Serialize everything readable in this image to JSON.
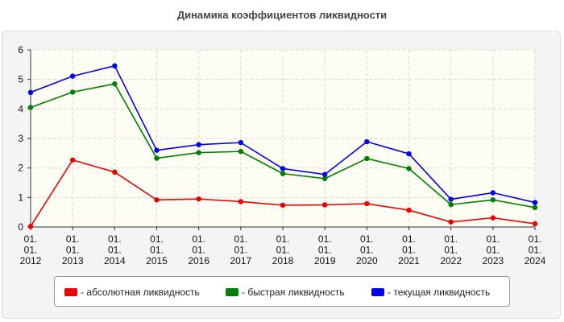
{
  "chart_data": {
    "type": "line",
    "title": "Динамика коэффициентов ликвидности",
    "xlabel": "",
    "ylabel": "",
    "x": [
      [
        "01.",
        "01.",
        "2012"
      ],
      [
        "01.",
        "01.",
        "2013"
      ],
      [
        "01.",
        "01.",
        "2014"
      ],
      [
        "01.",
        "01.",
        "2015"
      ],
      [
        "01.",
        "01.",
        "2016"
      ],
      [
        "01.",
        "01.",
        "2017"
      ],
      [
        "01.",
        "01.",
        "2018"
      ],
      [
        "01.",
        "01.",
        "2019"
      ],
      [
        "01.",
        "01.",
        "2020"
      ],
      [
        "01.",
        "01.",
        "2021"
      ],
      [
        "01.",
        "01.",
        "2022"
      ],
      [
        "01.",
        "01.",
        "2023"
      ],
      [
        "01.",
        "01.",
        "2024"
      ]
    ],
    "ylim": [
      0,
      6
    ],
    "yticks": [
      "0",
      "1",
      "2",
      "3",
      "4",
      "5",
      "6"
    ],
    "grid": true,
    "legend_position": "bottom",
    "series": [
      {
        "name": "- абсолютная ликвидность",
        "color": "#ee0000",
        "values": [
          0.02,
          2.27,
          1.86,
          0.92,
          0.95,
          0.86,
          0.74,
          0.75,
          0.79,
          0.57,
          0.17,
          0.31,
          0.11
        ]
      },
      {
        "name": "- быстрая ликвидность",
        "color": "#008000",
        "values": [
          4.05,
          4.57,
          4.85,
          2.33,
          2.52,
          2.56,
          1.81,
          1.64,
          2.32,
          1.98,
          0.76,
          0.92,
          0.66
        ]
      },
      {
        "name": "- текущая ликвидность",
        "color": "#0000ee",
        "values": [
          4.56,
          5.11,
          5.46,
          2.6,
          2.79,
          2.86,
          1.98,
          1.78,
          2.89,
          2.48,
          0.94,
          1.16,
          0.83
        ]
      }
    ]
  }
}
